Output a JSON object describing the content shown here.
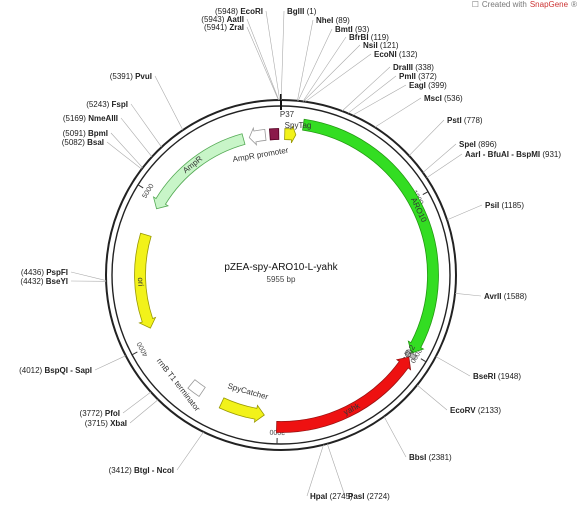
{
  "credit": {
    "prefix": "Created with",
    "brand": "SnapGene",
    "mark": "®"
  },
  "plasmid": {
    "name": "pZEA-spy-ARO10-L-yahk",
    "size": "5955 bp",
    "length": 5955
  },
  "ticks": [
    {
      "pos": 1000,
      "label": "1000"
    },
    {
      "pos": 2000,
      "label": "2000"
    },
    {
      "pos": 3000,
      "label": "3000"
    },
    {
      "pos": 4000,
      "label": "4000"
    },
    {
      "pos": 5000,
      "label": "5000"
    }
  ],
  "features": [
    {
      "name": "ARO10",
      "start": 140,
      "end": 2000,
      "dir": 1,
      "color": "#33dd22",
      "outline": "#229911",
      "ring": "outer",
      "label_color": "#333"
    },
    {
      "name": "(GSG)2",
      "start": 2000,
      "end": 2025,
      "dir": 0,
      "color": "#bbbbbb",
      "outline": "#666666",
      "ring": "outer",
      "label_color": "#333"
    },
    {
      "name": "yahk",
      "start": 2030,
      "end": 3005,
      "dir": -1,
      "color": "#ee1111",
      "outline": "#991111",
      "ring": "outer",
      "label_color": "#ffffff"
    },
    {
      "name": "SpyCatcher",
      "start": 3090,
      "end": 3390,
      "dir": -1,
      "color": "#f2f21a",
      "outline": "#999900",
      "ring": "inner",
      "label_color": "#333"
    },
    {
      "name": "rrnB T1 terminator",
      "start": 3540,
      "end": 3630,
      "dir": 0,
      "color": "#ffffff",
      "outline": "#999999",
      "ring": "inner",
      "label_color": "#333"
    },
    {
      "name": "ori",
      "start": 4100,
      "end": 4740,
      "dir": -1,
      "color": "#f2f21a",
      "outline": "#999900",
      "ring": "inner",
      "label_color": "#333"
    },
    {
      "name": "AmpR",
      "start": 4930,
      "end": 5700,
      "dir": -1,
      "color": "#c8f5c8",
      "outline": "#55aa55",
      "ring": "inner",
      "label_color": "#333"
    },
    {
      "name": "AmpR promoter",
      "start": 5740,
      "end": 5850,
      "dir": -1,
      "color": "#ffffff",
      "outline": "#999999",
      "ring": "inner",
      "label_color": "#333"
    },
    {
      "name": "P37",
      "start": 5880,
      "end": 5940,
      "dir": 0,
      "color": "#8b1a4a",
      "outline": "#550022",
      "ring": "inner",
      "label_color": "#333"
    },
    {
      "name": "SpyTag",
      "start": 25,
      "end": 100,
      "dir": 1,
      "color": "#f2f21a",
      "outline": "#999900",
      "ring": "inner",
      "label_color": "#333"
    }
  ],
  "sites": [
    {
      "enzyme": "EcoRI",
      "pos": 5948,
      "num": "(5948)"
    },
    {
      "enzyme": "AatII",
      "pos": 5943,
      "num": "(5943)"
    },
    {
      "enzyme": "ZraI",
      "pos": 5941,
      "num": "(5941)"
    },
    {
      "enzyme": "BglII",
      "pos": 1,
      "num": "(1)"
    },
    {
      "enzyme": "NheI",
      "pos": 89,
      "num": "(89)"
    },
    {
      "enzyme": "BmtI",
      "pos": 93,
      "num": "(93)"
    },
    {
      "enzyme": "BfrBI",
      "pos": 119,
      "num": "(119)"
    },
    {
      "enzyme": "NsiI",
      "pos": 121,
      "num": "(121)"
    },
    {
      "enzyme": "EcoNI",
      "pos": 132,
      "num": "(132)"
    },
    {
      "enzyme": "DraIII",
      "pos": 338,
      "num": "(338)"
    },
    {
      "enzyme": "PmlI",
      "pos": 372,
      "num": "(372)"
    },
    {
      "enzyme": "EagI",
      "pos": 399,
      "num": "(399)"
    },
    {
      "enzyme": "MscI",
      "pos": 536,
      "num": "(536)"
    },
    {
      "enzyme": "PstI",
      "pos": 778,
      "num": "(778)"
    },
    {
      "enzyme": "SpeI",
      "pos": 896,
      "num": "(896)"
    },
    {
      "enzyme": "AarI - BfuAI - BspMI",
      "pos": 931,
      "num": "(931)"
    },
    {
      "enzyme": "PsiI",
      "pos": 1185,
      "num": "(1185)"
    },
    {
      "enzyme": "AvrII",
      "pos": 1588,
      "num": "(1588)"
    },
    {
      "enzyme": "BseRI",
      "pos": 1948,
      "num": "(1948)"
    },
    {
      "enzyme": "EcoRV",
      "pos": 2133,
      "num": "(2133)"
    },
    {
      "enzyme": "BbsI",
      "pos": 2381,
      "num": "(2381)"
    },
    {
      "enzyme": "PasI",
      "pos": 2724,
      "num": "(2724)"
    },
    {
      "enzyme": "HpaI",
      "pos": 2745,
      "num": "(2745)"
    },
    {
      "enzyme": "BtgI - NcoI",
      "pos": 3412,
      "num": "(3412)"
    },
    {
      "enzyme": "XbaI",
      "pos": 3715,
      "num": "(3715)"
    },
    {
      "enzyme": "PfoI",
      "pos": 3772,
      "num": "(3772)"
    },
    {
      "enzyme": "BspQI - SapI",
      "pos": 4012,
      "num": "(4012)"
    },
    {
      "enzyme": "BseYI",
      "pos": 4432,
      "num": "(4432)"
    },
    {
      "enzyme": "PspFI",
      "pos": 4436,
      "num": "(4436)"
    },
    {
      "enzyme": "BsaI",
      "pos": 5082,
      "num": "(5082)"
    },
    {
      "enzyme": "BpmI",
      "pos": 5091,
      "num": "(5091)"
    },
    {
      "enzyme": "NmeAIII",
      "pos": 5169,
      "num": "(5169)"
    },
    {
      "enzyme": "FspI",
      "pos": 5243,
      "num": "(5243)"
    },
    {
      "enzyme": "PvuI",
      "pos": 5391,
      "num": "(5391)"
    }
  ]
}
